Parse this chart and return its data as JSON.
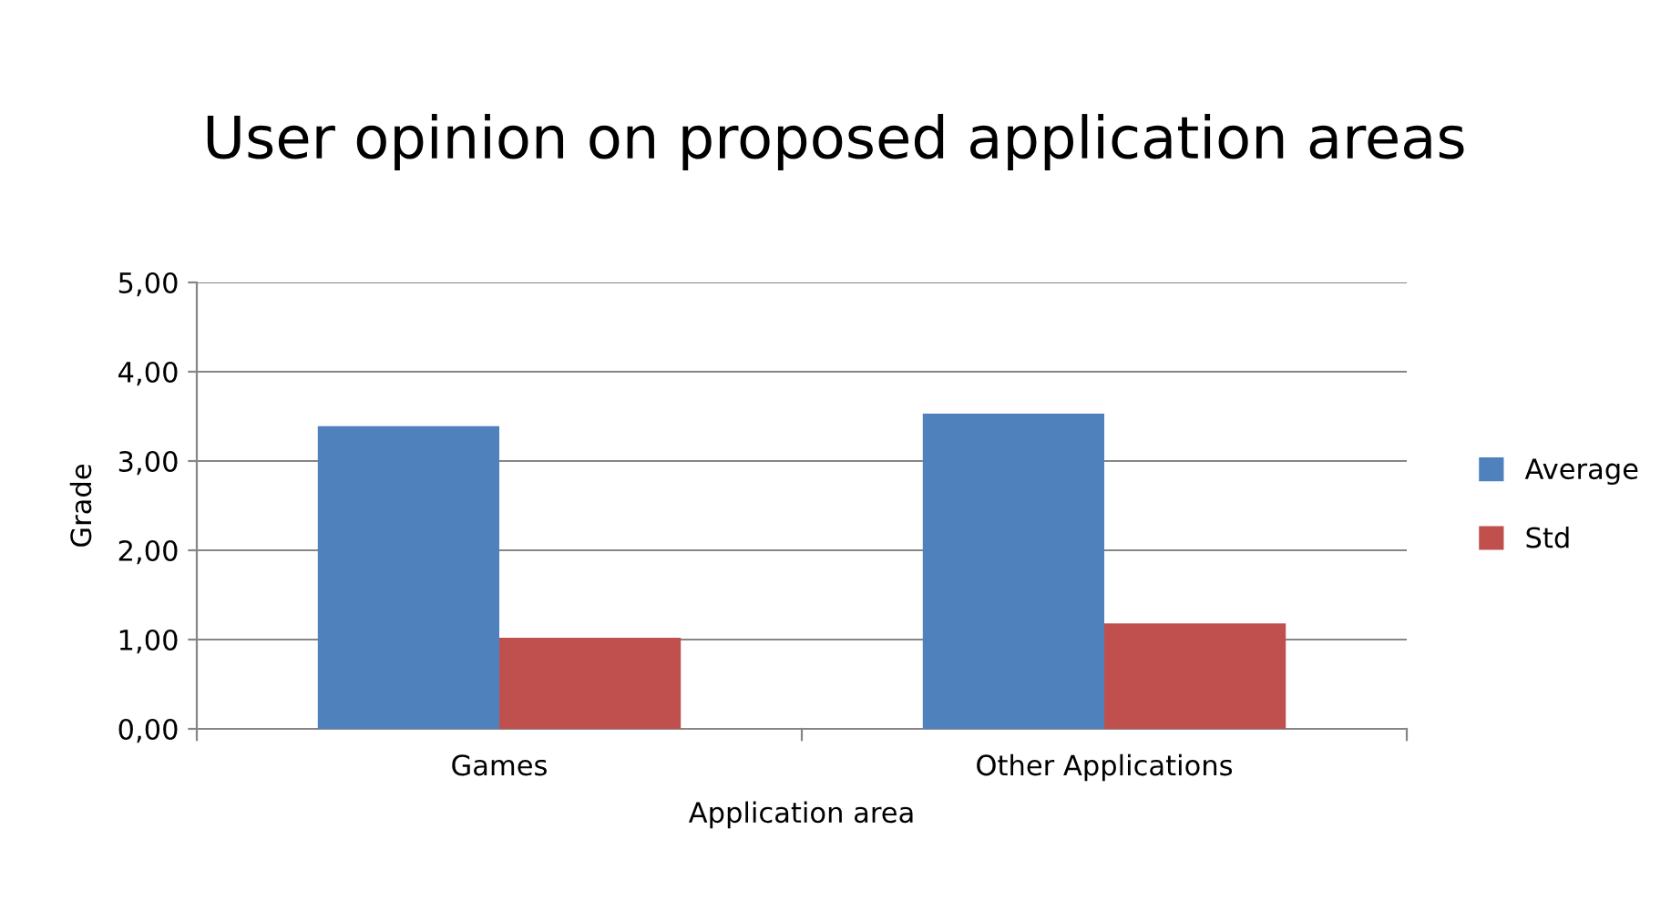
{
  "chart_data": {
    "type": "bar",
    "title": "User opinion on proposed application areas",
    "xlabel": "Application area",
    "ylabel": "Grade",
    "categories": [
      "Games",
      "Other Applications"
    ],
    "series": [
      {
        "name": "Average",
        "color": "#4f81bd",
        "values": [
          3.39,
          3.53
        ]
      },
      {
        "name": "Std",
        "color": "#c0504d",
        "values": [
          1.02,
          1.18
        ]
      }
    ],
    "ylim": [
      0,
      5
    ],
    "yticks": [
      {
        "value": 0,
        "label": "0,00"
      },
      {
        "value": 1,
        "label": "1,00"
      },
      {
        "value": 2,
        "label": "2,00"
      },
      {
        "value": 3,
        "label": "3,00"
      },
      {
        "value": 4,
        "label": "4,00"
      },
      {
        "value": 5,
        "label": "5,00"
      }
    ],
    "grid": "y",
    "legend": "right"
  }
}
